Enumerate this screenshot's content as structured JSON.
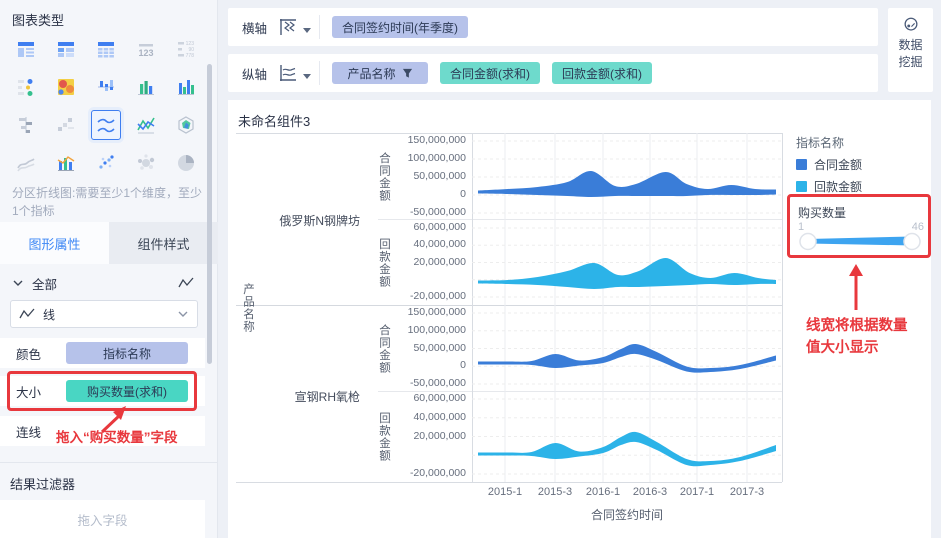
{
  "colors": {
    "accent_blue": "#3d87f5",
    "pill_dimension": "#b6c2ea",
    "pill_measure": "#6edacc",
    "pill_measure_strong": "#49d6c3",
    "annotation_red": "#e8383d",
    "slider_blue": "#3da4f0",
    "series_contract": "#3a7dd8",
    "series_payment": "#2cb3e8"
  },
  "sidebar": {
    "title": "图表类型",
    "description_line1": "分区折线图:需要至少1个维度，至少",
    "description_line2": "1个指标",
    "tabs": [
      {
        "label": "图形属性",
        "active": true
      },
      {
        "label": "组件样式",
        "active": false
      }
    ],
    "group_toggle": {
      "label": "全部"
    },
    "shape_select": {
      "value": "线"
    },
    "properties": [
      {
        "label": "颜色",
        "field": "指标名称",
        "field_type": "dimension",
        "highlighted": false
      },
      {
        "label": "大小",
        "field": "购买数量(求和)",
        "field_type": "measure-strong",
        "highlighted": true
      },
      {
        "label": "连线",
        "field": "",
        "field_type": "",
        "highlighted": false
      }
    ],
    "annotation": "拖入“购买数量”字段",
    "result_filter": {
      "title": "结果过滤器",
      "placeholder": "拖入字段"
    },
    "chart_type_icons": [
      "grouped-table",
      "cross-table",
      "detail-table",
      "kpi-card",
      "text-kpi",
      "dot-table",
      "heatmap",
      "stacked-bar",
      "grouped-bar",
      "multi-series-bar",
      "horizontal-bar",
      "waterfall",
      "partition-line",
      "range-area",
      "radar",
      "area-gray",
      "combo-chart",
      "scatter",
      "bubble",
      "pie"
    ],
    "selected_chart_type": "partition-line"
  },
  "axis_shelves": {
    "rows": [
      {
        "label": "横轴",
        "icon": "horizontal-axis-icon",
        "fields": [
          {
            "text": "合同签约时间(年季度)",
            "type": "dimension",
            "filter": false
          }
        ]
      },
      {
        "label": "纵轴",
        "icon": "vertical-axis-icon",
        "fields": [
          {
            "text": "产品名称",
            "type": "dimension",
            "filter": true
          },
          {
            "text": "合同金额(求和)",
            "type": "measure",
            "filter": false
          },
          {
            "text": "回款金额(求和)",
            "type": "measure",
            "filter": false
          }
        ]
      }
    ]
  },
  "data_mining": {
    "line1": "数据",
    "line2": "挖掘"
  },
  "chart": {
    "title": "未命名组件3",
    "y_axis_title": "产品名称",
    "x_axis_title": "合同签约时间",
    "x_labels": [
      "2015-1",
      "2015-3",
      "2016-1",
      "2016-3",
      "2017-1",
      "2017-3"
    ]
  },
  "legend": {
    "title": "指标名称",
    "items": [
      {
        "label": "合同金额",
        "color": "#3a7dd8"
      },
      {
        "label": "回款金额",
        "color": "#2cb3e8"
      }
    ],
    "size_legend": {
      "title": "购买数量",
      "min": "1",
      "max": "46"
    },
    "annotation_line1": "线宽将根据数量",
    "annotation_line2": "值大小显示"
  },
  "chart_data": {
    "type": "area",
    "note": "分区折线图 (partitioned stream/line chart); line width encodes 购买数量(求和), range 1-46",
    "x_axis": "合同签约时间(年季度)",
    "x_tick_labels": [
      "2015-1",
      "2015-3",
      "2016-1",
      "2016-3",
      "2017-1",
      "2017-3"
    ],
    "row_dimension": "产品名称",
    "size_field": "购买数量(求和)",
    "size_range": [
      1,
      46
    ],
    "subplots": [
      {
        "product": "俄罗斯N钢牌坊",
        "measure": "合同金额",
        "color": "#3a7dd8",
        "axis_ticks": [
          "150,000,000",
          "100,000,000",
          "50,000,000",
          "0",
          "-50,000,000"
        ],
        "axis_range": [
          -50000000,
          150000000
        ],
        "stream": [
          [
            0,
            0,
            1.5
          ],
          [
            0.1,
            0.5,
            2.5
          ],
          [
            0.2,
            1,
            4
          ],
          [
            0.3,
            3,
            7
          ],
          [
            0.38,
            8,
            13
          ],
          [
            0.46,
            1,
            5
          ],
          [
            0.53,
            2,
            6
          ],
          [
            0.63,
            8,
            12
          ],
          [
            0.7,
            2,
            6
          ],
          [
            0.77,
            0,
            3
          ],
          [
            0.85,
            2,
            5
          ],
          [
            0.93,
            0,
            3
          ],
          [
            1,
            0,
            2.5
          ]
        ]
      },
      {
        "product": "俄罗斯N钢牌坊",
        "measure": "回款金额",
        "color": "#2cb3e8",
        "axis_ticks": [
          "60,000,000",
          "40,000,000",
          "20,000,000",
          "",
          "-20,000,000"
        ],
        "axis_range": [
          -20000000,
          60000000
        ],
        "stream": [
          [
            0,
            0,
            1.5
          ],
          [
            0.1,
            0,
            2
          ],
          [
            0.2,
            1,
            4
          ],
          [
            0.3,
            3,
            8
          ],
          [
            0.39,
            6,
            13
          ],
          [
            0.47,
            1,
            6
          ],
          [
            0.54,
            3,
            8
          ],
          [
            0.63,
            10,
            14
          ],
          [
            0.71,
            3,
            6
          ],
          [
            0.78,
            1,
            3
          ],
          [
            0.86,
            3,
            6
          ],
          [
            0.94,
            1,
            3
          ],
          [
            1,
            0,
            2
          ]
        ]
      },
      {
        "product": "宣钢RH氧枪",
        "measure": "合同金额",
        "color": "#3a7dd8",
        "axis_ticks": [
          "150,000,000",
          "100,000,000",
          "50,000,000",
          "0",
          "-50,000,000"
        ],
        "axis_range": [
          -50000000,
          150000000
        ],
        "stream": [
          [
            0,
            0,
            1.5
          ],
          [
            0.1,
            0,
            1.5
          ],
          [
            0.18,
            0,
            2
          ],
          [
            0.26,
            2,
            7
          ],
          [
            0.34,
            0,
            2.5
          ],
          [
            0.42,
            3,
            3
          ],
          [
            0.48,
            10,
            4
          ],
          [
            0.53,
            14,
            5
          ],
          [
            0.6,
            7,
            4
          ],
          [
            0.7,
            -6,
            2.5
          ],
          [
            0.78,
            -7,
            2
          ],
          [
            0.88,
            -4,
            2
          ],
          [
            1,
            5,
            2.5
          ]
        ]
      },
      {
        "product": "宣钢RH氧枪",
        "measure": "回款金额",
        "color": "#2cb3e8",
        "axis_ticks": [
          "60,000,000",
          "40,000,000",
          "20,000,000",
          "",
          "-20,000,000"
        ],
        "axis_range": [
          -20000000,
          60000000
        ],
        "stream": [
          [
            0,
            0,
            1.5
          ],
          [
            0.1,
            0,
            1.5
          ],
          [
            0.18,
            0,
            2
          ],
          [
            0.26,
            3,
            8
          ],
          [
            0.34,
            0,
            2.5
          ],
          [
            0.42,
            4,
            3
          ],
          [
            0.48,
            13,
            4
          ],
          [
            0.53,
            17,
            5
          ],
          [
            0.6,
            8,
            4
          ],
          [
            0.7,
            -8,
            3
          ],
          [
            0.78,
            -9,
            2
          ],
          [
            0.88,
            -5,
            2
          ],
          [
            1,
            6,
            3
          ]
        ]
      }
    ]
  }
}
